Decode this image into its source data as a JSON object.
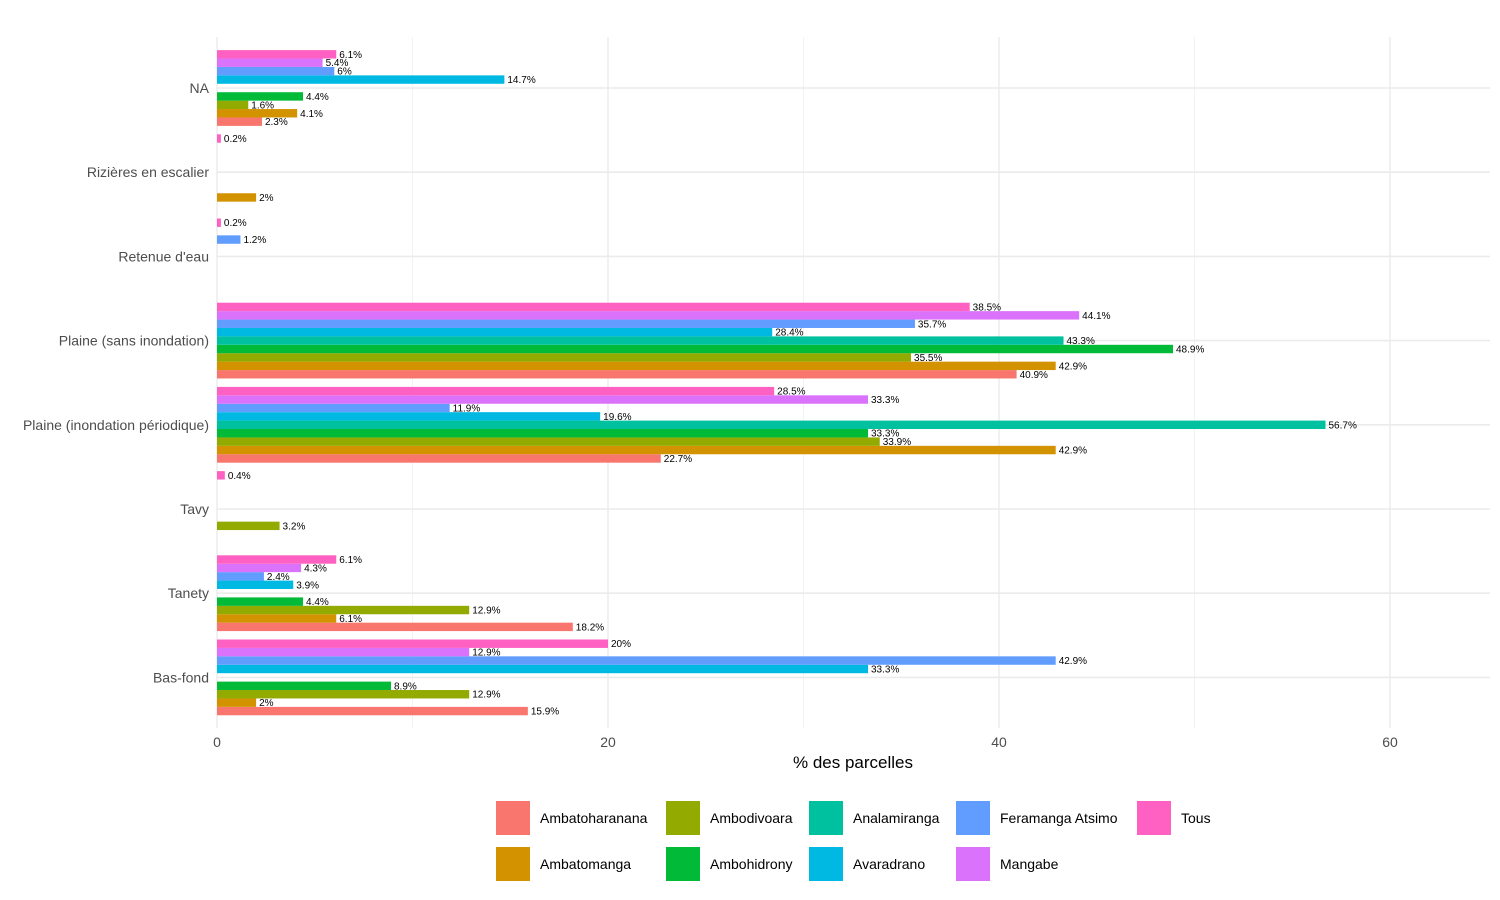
{
  "chart_data": {
    "type": "bar",
    "orientation": "horizontal",
    "title": "",
    "xlabel": "% des parcelles",
    "ylabel": "",
    "xlim": [
      0,
      65
    ],
    "x_ticks": [
      0,
      20,
      40,
      60
    ],
    "x_minor_ticks": [
      10,
      30,
      50
    ],
    "grid": true,
    "legend_position": "bottom",
    "categories": [
      "NA",
      "Rizières en escalier",
      "Retenue d'eau",
      "Plaine (sans inondation)",
      "Plaine (inondation périodique)",
      "Tavy",
      "Tanety",
      "Bas-fond"
    ],
    "series": [
      {
        "name": "Ambatoharanana",
        "color": "#F8766D",
        "values": [
          2.3,
          null,
          null,
          40.9,
          22.7,
          null,
          18.2,
          15.9
        ]
      },
      {
        "name": "Ambatomanga",
        "color": "#D39200",
        "values": [
          4.1,
          2,
          null,
          42.9,
          42.9,
          null,
          6.1,
          2
        ]
      },
      {
        "name": "Ambodivoara",
        "color": "#93AA00",
        "values": [
          1.6,
          null,
          null,
          35.5,
          33.9,
          3.2,
          12.9,
          12.9
        ]
      },
      {
        "name": "Ambohidrony",
        "color": "#00BA38",
        "values": [
          4.4,
          null,
          null,
          48.9,
          33.3,
          null,
          4.4,
          8.9
        ]
      },
      {
        "name": "Analamiranga",
        "color": "#00C19F",
        "values": [
          null,
          null,
          null,
          43.3,
          56.7,
          null,
          null,
          null
        ]
      },
      {
        "name": "Avaradrano",
        "color": "#00B9E3",
        "values": [
          14.7,
          null,
          null,
          28.4,
          19.6,
          null,
          3.9,
          33.3
        ]
      },
      {
        "name": "Feramanga Atsimo",
        "color": "#619CFF",
        "values": [
          6,
          null,
          1.2,
          35.7,
          11.9,
          null,
          2.4,
          42.9
        ]
      },
      {
        "name": "Mangabe",
        "color": "#DB72FB",
        "values": [
          5.4,
          null,
          null,
          44.1,
          33.3,
          null,
          4.3,
          12.9
        ]
      },
      {
        "name": "Tous",
        "color": "#FF61C3",
        "values": [
          6.1,
          0.2,
          0.2,
          38.5,
          28.5,
          0.4,
          6.1,
          20
        ]
      }
    ],
    "label_suffix": "%"
  }
}
